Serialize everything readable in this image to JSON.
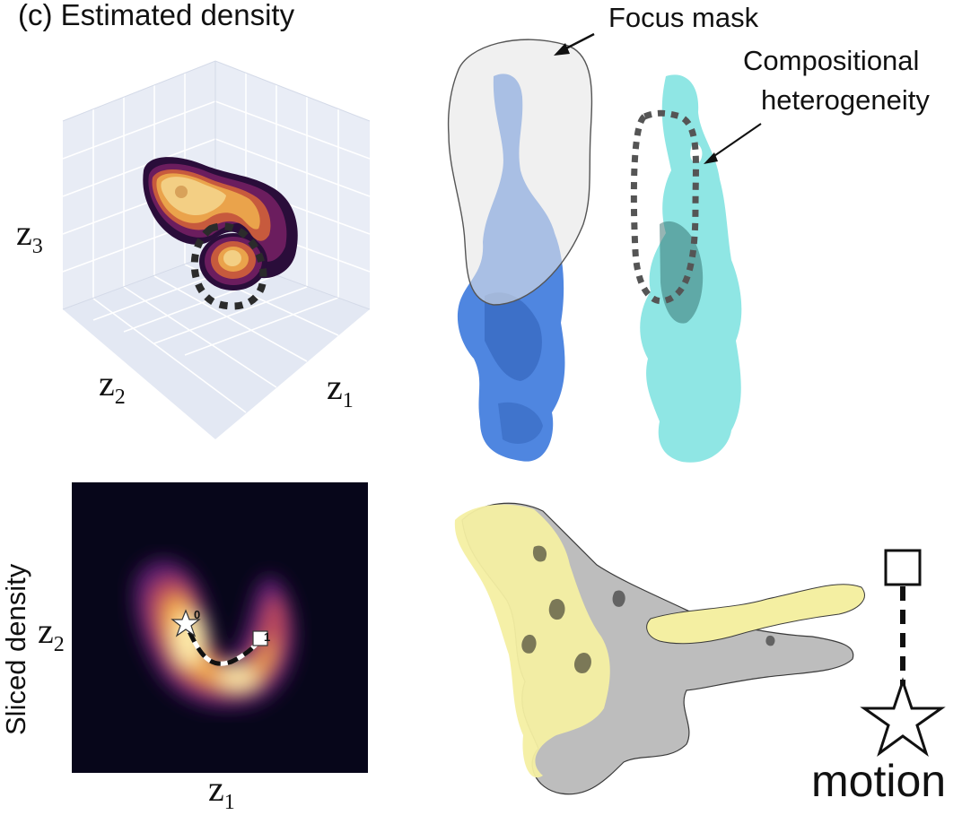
{
  "panel_title": "(c) Estimated density",
  "plot3d": {
    "axis_z1": "z",
    "axis_z1_sub": "1",
    "axis_z2": "z",
    "axis_z2_sub": "2",
    "axis_z3": "z",
    "axis_z3_sub": "3"
  },
  "annotations": {
    "focus_mask": "Focus mask",
    "compositional_line1": "Compositional",
    "compositional_line2": "heterogeneity"
  },
  "slice_plot": {
    "ylabel_outer": "Sliced density",
    "axis_x": "z",
    "axis_x_sub": "1",
    "axis_y": "z",
    "axis_y_sub": "2",
    "path_start_label": "0",
    "path_end_label": "1"
  },
  "legend": {
    "motion_label": "motion"
  },
  "colors": {
    "mask_gray": "#d9d9d9",
    "blue_density": "#4f86e0",
    "cyan_density": "#8fe6e4",
    "yellow_density": "#f4efa2",
    "gray_density": "#b8b8b8",
    "density_dark": "#2a0d3a",
    "density_hot": "#f6b04b"
  }
}
